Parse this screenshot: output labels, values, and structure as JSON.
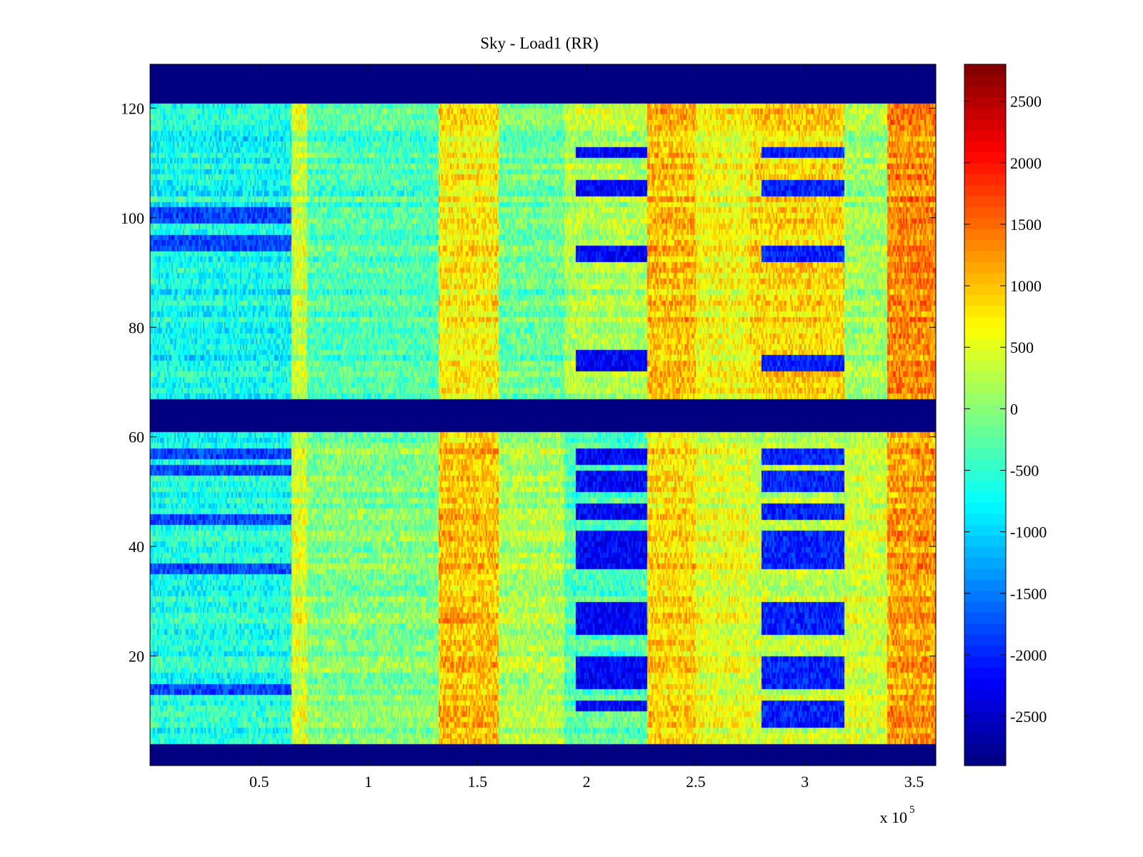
{
  "chart_data": {
    "type": "heatmap",
    "title": "Sky - Load1 (RR)",
    "xlabel": "",
    "ylabel": "",
    "x_multiplier_label": "x 10",
    "x_multiplier_exponent": "5",
    "xlim": [
      0,
      3.6
    ],
    "ylim": [
      0,
      128
    ],
    "x_ticks": [
      0.5,
      1,
      1.5,
      2,
      2.5,
      3,
      3.5
    ],
    "x_tick_labels": [
      "0.5",
      "1",
      "1.5",
      "2",
      "2.5",
      "3",
      "3.5"
    ],
    "y_ticks": [
      20,
      40,
      60,
      80,
      100,
      120
    ],
    "y_tick_labels": [
      "20",
      "40",
      "60",
      "80",
      "100",
      "120"
    ],
    "colormap": "jet",
    "clim": [
      -2900,
      2800
    ],
    "colorbar_ticks": [
      2500,
      2000,
      1500,
      1000,
      500,
      0,
      -500,
      -1000,
      -1500,
      -2000,
      -2500
    ],
    "colorbar_tick_labels": [
      "2500",
      "2000",
      "1500",
      "1000",
      "500",
      "0",
      "-500",
      "-1000",
      "-1500",
      "-2000",
      "-2500"
    ],
    "masked_rows": [
      [
        0,
        4
      ],
      [
        61,
        67
      ],
      [
        121,
        128
      ]
    ],
    "column_segments": [
      {
        "x_start": 0.0,
        "x_end": 0.65,
        "level_upper": -700,
        "level_lower": -600
      },
      {
        "x_start": 0.65,
        "x_end": 0.72,
        "level_upper": 350,
        "level_lower": 450
      },
      {
        "x_start": 0.72,
        "x_end": 1.32,
        "level_upper": -350,
        "level_lower": -50
      },
      {
        "x_start": 1.32,
        "x_end": 1.6,
        "level_upper": 700,
        "level_lower": 1000
      },
      {
        "x_start": 1.6,
        "x_end": 1.9,
        "level_upper": -200,
        "level_lower": 200
      },
      {
        "x_start": 1.9,
        "x_end": 2.28,
        "level_upper": 200,
        "level_lower": -300
      },
      {
        "x_start": 2.28,
        "x_end": 2.5,
        "level_upper": 1000,
        "level_lower": 850
      },
      {
        "x_start": 2.5,
        "x_end": 2.75,
        "level_upper": 600,
        "level_lower": 500
      },
      {
        "x_start": 2.75,
        "x_end": 3.18,
        "level_upper": 850,
        "level_lower": 350
      },
      {
        "x_start": 3.18,
        "x_end": 3.38,
        "level_upper": 100,
        "level_lower": 400
      },
      {
        "x_start": 3.38,
        "x_end": 3.6,
        "level_upper": 1300,
        "level_lower": 1200
      }
    ],
    "feature_blocks": [
      {
        "x_start": 1.95,
        "x_end": 2.28,
        "rows": [
          [
            111,
            112
          ],
          [
            104,
            106
          ],
          [
            92,
            94
          ],
          [
            72,
            75
          ],
          [
            55,
            57
          ],
          [
            50,
            53
          ],
          [
            45,
            47
          ],
          [
            36,
            42
          ],
          [
            24,
            25
          ],
          [
            26,
            29
          ],
          [
            14,
            19
          ],
          [
            10,
            11
          ]
        ],
        "value": -2200
      },
      {
        "x_start": 2.8,
        "x_end": 3.18,
        "rows": [
          [
            111,
            112
          ],
          [
            104,
            106
          ],
          [
            92,
            94
          ],
          [
            72,
            74
          ],
          [
            55,
            57
          ],
          [
            50,
            53
          ],
          [
            45,
            47
          ],
          [
            36,
            42
          ],
          [
            24,
            25
          ],
          [
            26,
            29
          ],
          [
            14,
            19
          ],
          [
            7,
            11
          ]
        ],
        "value": -2000
      },
      {
        "x_start": 0.0,
        "x_end": 0.65,
        "rows": [
          [
            99,
            101
          ],
          [
            94,
            96
          ],
          [
            56,
            57
          ],
          [
            53,
            54
          ],
          [
            44,
            45
          ],
          [
            35,
            36
          ],
          [
            13,
            14
          ]
        ],
        "value": -1800
      }
    ]
  }
}
